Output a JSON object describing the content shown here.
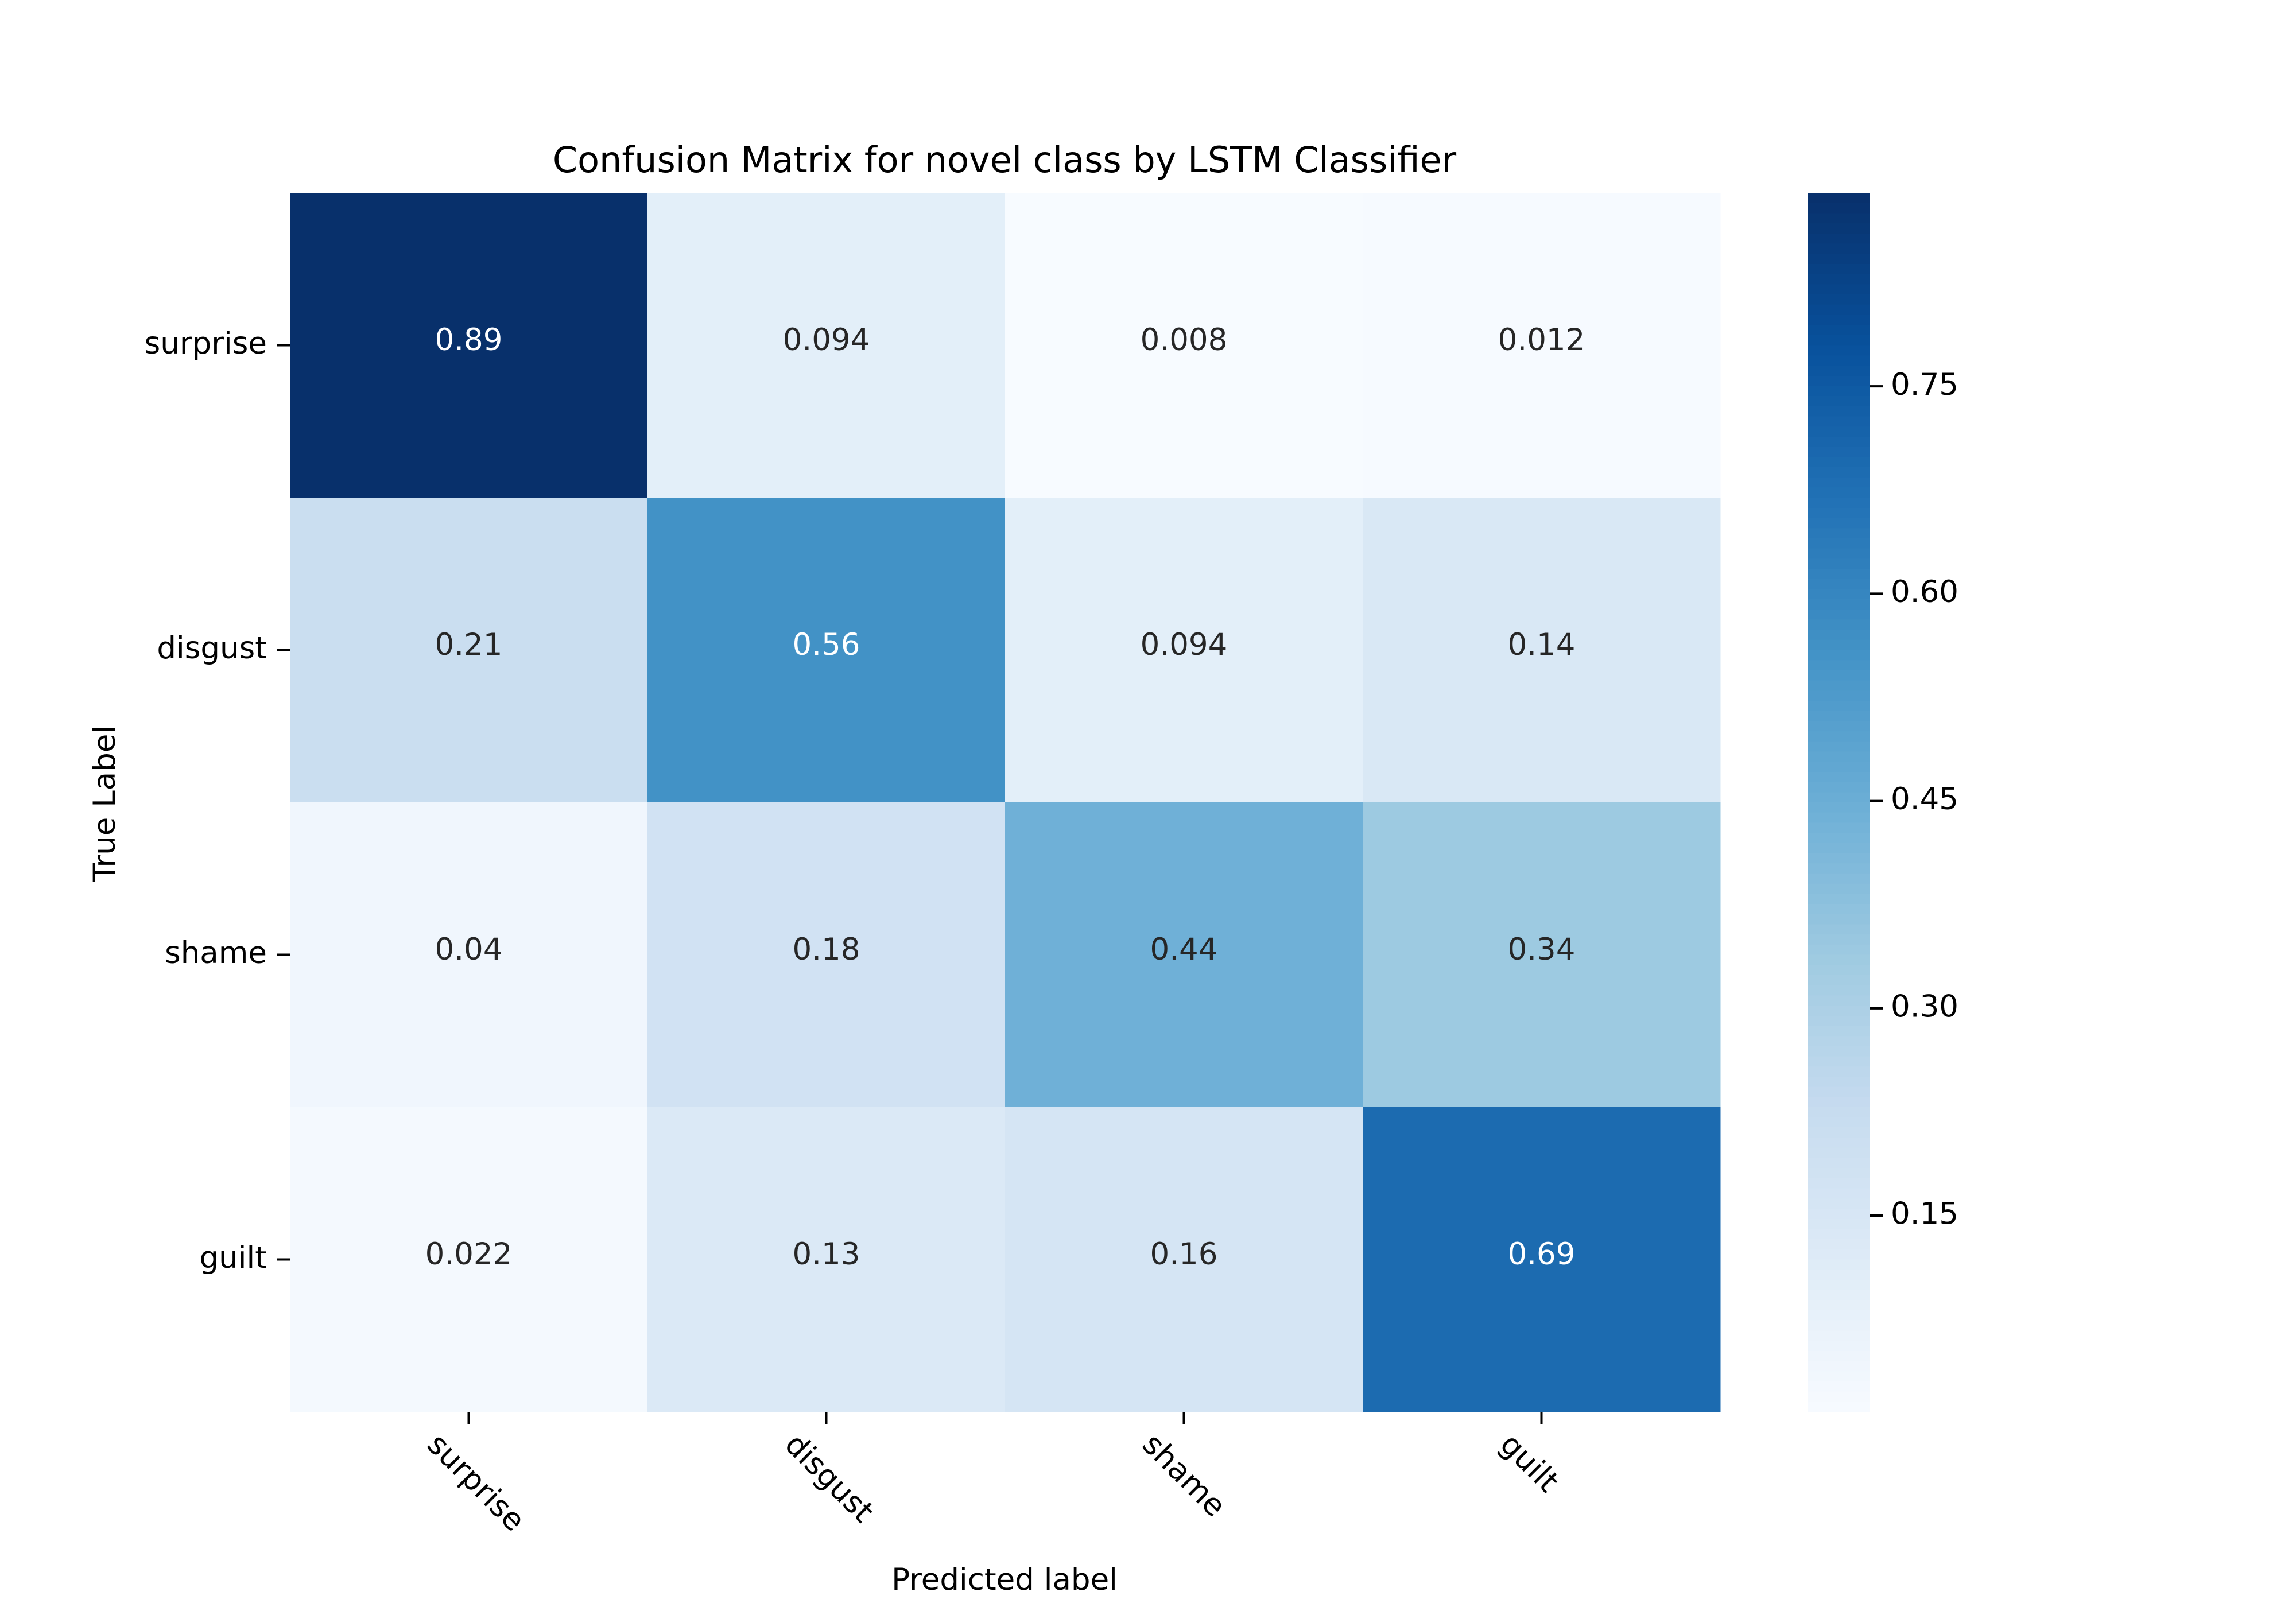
{
  "chart_data": {
    "type": "heatmap",
    "title": "Confusion Matrix for novel class by LSTM Classifier",
    "xlabel": "Predicted label",
    "ylabel": "True Label",
    "x_categories": [
      "surprise",
      "disgust",
      "shame",
      "guilt"
    ],
    "y_categories": [
      "surprise",
      "disgust",
      "shame",
      "guilt"
    ],
    "values": [
      [
        0.89,
        0.094,
        0.008,
        0.012
      ],
      [
        0.21,
        0.56,
        0.094,
        0.14
      ],
      [
        0.04,
        0.18,
        0.44,
        0.34
      ],
      [
        0.022,
        0.13,
        0.16,
        0.69
      ]
    ],
    "cell_labels": [
      [
        "0.89",
        "0.094",
        "0.008",
        "0.012"
      ],
      [
        "0.21",
        "0.56",
        "0.094",
        "0.14"
      ],
      [
        "0.04",
        "0.18",
        "0.44",
        "0.34"
      ],
      [
        "0.022",
        "0.13",
        "0.16",
        "0.69"
      ]
    ],
    "colormap": "Blues",
    "colorbar": {
      "range": [
        0.008,
        0.89
      ],
      "ticks": [
        0.15,
        0.3,
        0.45,
        0.6,
        0.75
      ],
      "tick_labels": [
        "0.15",
        "0.30",
        "0.45",
        "0.60",
        "0.75"
      ]
    },
    "grid": false
  }
}
